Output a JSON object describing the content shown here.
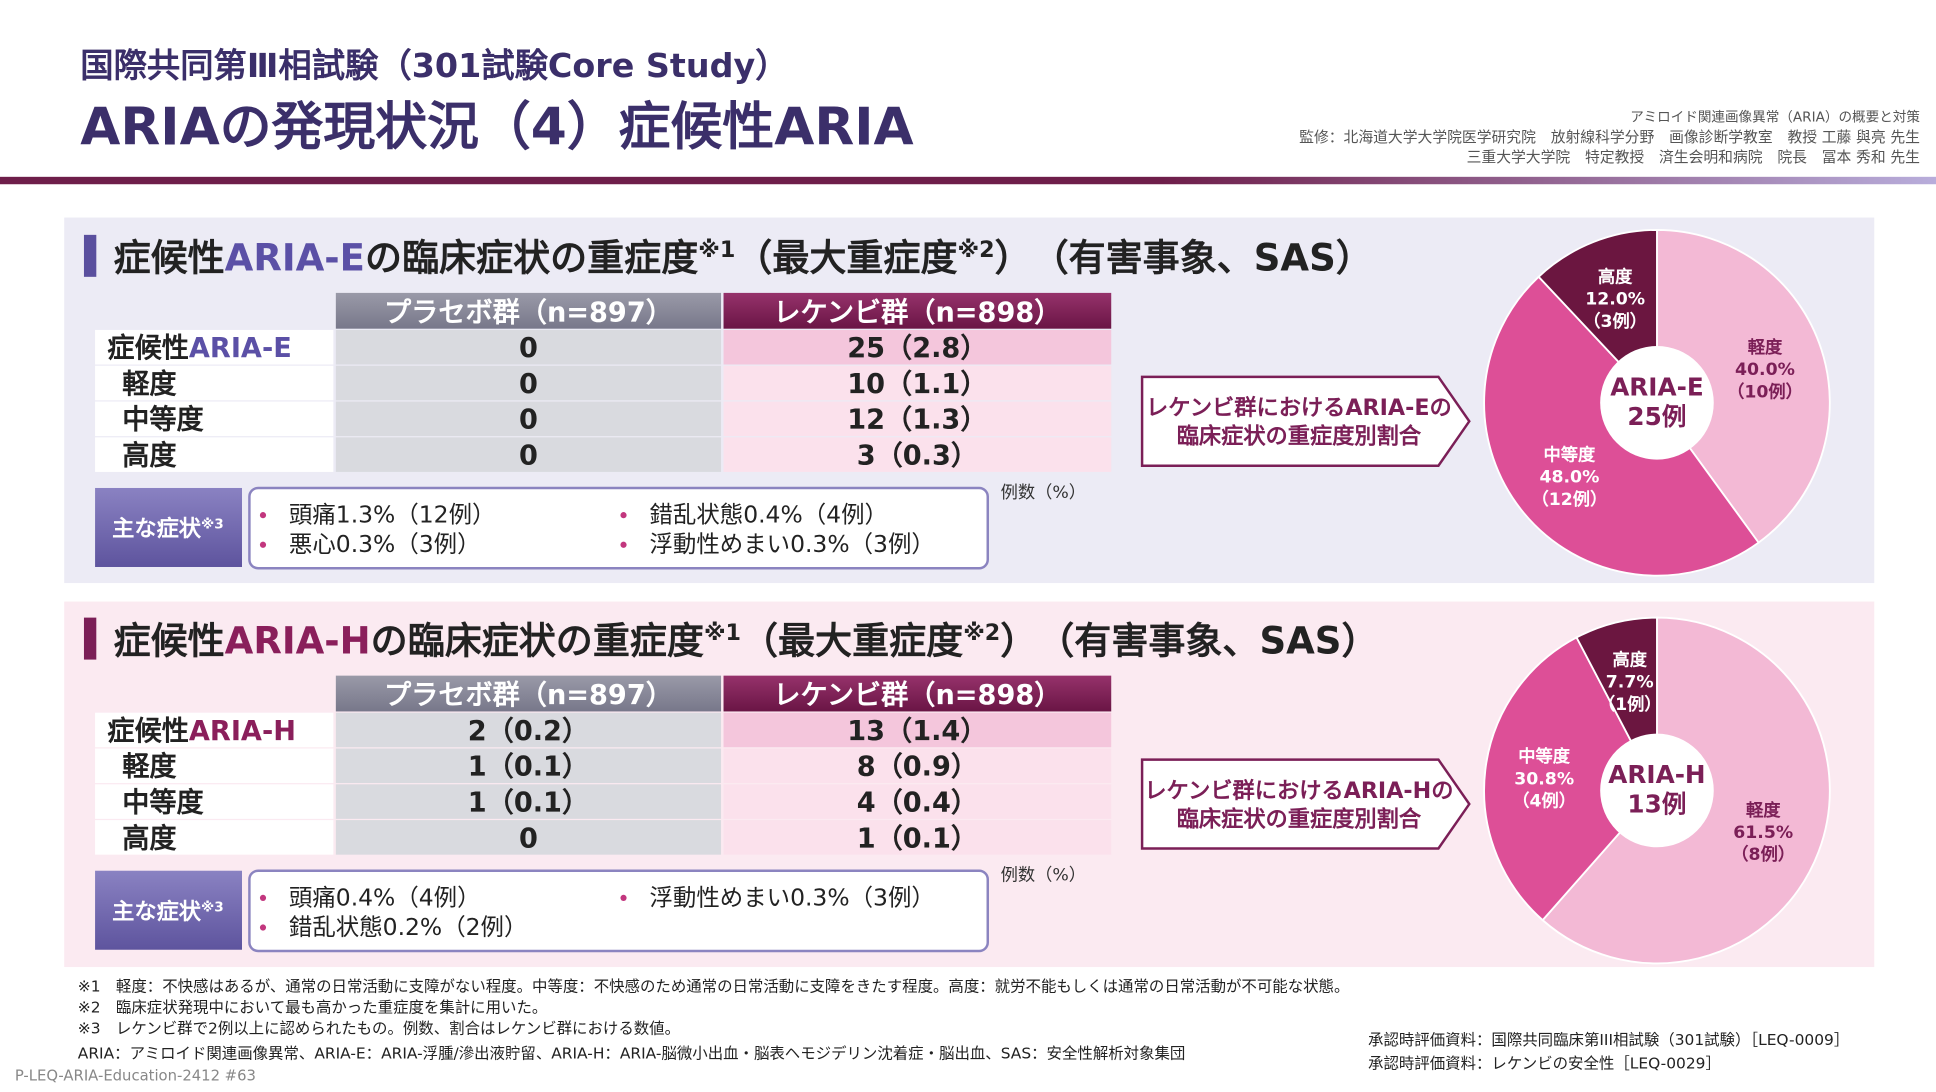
{
  "header": {
    "title": "国際共同第Ⅲ相試験（301試験Core Study）",
    "subtitle": "ARIAの発現状況（4）症候性ARIA",
    "source_lines": [
      "アミロイド関連画像異常（ARIA）の概要と対策",
      "監修：北海道大学大学院医学研究院　放射線科学分野　画像診断学教室　教授 工藤 與亮 先生",
      "三重大学大学院　特定教授　済生会明和病院　院長　冨本 秀和 先生"
    ]
  },
  "sections": [
    {
      "title": {
        "prefix": "症候性",
        "term": "ARIA-E",
        "text1": "の臨床症状の重症度",
        "note1": "※1",
        "text2": "（最大重症度",
        "note2": "※2",
        "text3": "）　（有害事象、SAS）"
      },
      "table": {
        "columns": [
          "プラセボ群（n=897）",
          "レケンビ群（n=898）"
        ],
        "rows": [
          {
            "label": [
              "症候性",
              "ARIA-E"
            ],
            "cells": [
              "0",
              "25（2.8）"
            ]
          },
          {
            "label": "軽度",
            "cells": [
              "0",
              "10（1.1）"
            ]
          },
          {
            "label": "中等度",
            "cells": [
              "0",
              "12（1.3）"
            ]
          },
          {
            "label": "高度",
            "cells": [
              "0",
              "3（0.3）"
            ]
          }
        ]
      },
      "unit_note": "例数（%）",
      "symptoms_label": [
        "主な症状",
        "※3"
      ],
      "symptom_columns": [
        [
          "頭痛1.3%（12例）",
          "悪心0.3%（3例）"
        ],
        [
          "錯乱状態0.4%（4例）",
          "浮動性めまい0.3%（3例）"
        ]
      ],
      "callout": [
        "レケンビ群におけるARIA-Eの",
        "臨床症状の重症度別割合"
      ],
      "pie": {
        "type": "pie",
        "center_label": [
          "ARIA-E",
          "25例"
        ],
        "categories": [
          "軽度",
          "中等度",
          "高度"
        ],
        "values": [
          40.0,
          48.0,
          12.0
        ],
        "value_labels": [
          "40.0%",
          "48.0%",
          "12.0%"
        ],
        "counts": [
          "（10例）",
          "（12例）",
          "（3例）"
        ],
        "colors": [
          "#f3b9d5",
          "#dd4f97",
          "#6b1640"
        ]
      }
    },
    {
      "title": {
        "prefix": "症候性",
        "term": "ARIA-H",
        "text1": "の臨床症状の重症度",
        "note1": "※1",
        "text2": "（最大重症度",
        "note2": "※2",
        "text3": "）　（有害事象、SAS）"
      },
      "table": {
        "columns": [
          "プラセボ群（n=897）",
          "レケンビ群（n=898）"
        ],
        "rows": [
          {
            "label": [
              "症候性",
              "ARIA-H"
            ],
            "cells": [
              "2（0.2）",
              "13（1.4）"
            ]
          },
          {
            "label": "軽度",
            "cells": [
              "1（0.1）",
              "8（0.9）"
            ]
          },
          {
            "label": "中等度",
            "cells": [
              "1（0.1）",
              "4（0.4）"
            ]
          },
          {
            "label": "高度",
            "cells": [
              "0",
              "1（0.1）"
            ]
          }
        ]
      },
      "unit_note": "例数（%）",
      "symptoms_label": [
        "主な症状",
        "※3"
      ],
      "symptom_columns": [
        [
          "頭痛0.4%（4例）",
          "錯乱状態0.2%（2例）"
        ],
        [
          "浮動性めまい0.3%（3例）"
        ]
      ],
      "callout": [
        "レケンビ群におけるARIA-Hの",
        "臨床症状の重症度別割合"
      ],
      "pie": {
        "type": "pie",
        "center_label": [
          "ARIA-H",
          "13例"
        ],
        "categories": [
          "軽度",
          "中等度",
          "高度"
        ],
        "values": [
          61.5,
          30.8,
          7.7
        ],
        "value_labels": [
          "61.5%",
          "30.8%",
          "7.7%"
        ],
        "counts": [
          "（8例）",
          "（4例）",
          "（1例）"
        ],
        "colors": [
          "#f3b9d5",
          "#dd4f97",
          "#6b1640"
        ]
      }
    }
  ],
  "footnotes": [
    "※1　軽度：不快感はあるが、通常の日常活動に支障がない程度。中等度：不快感のため通常の日常活動に支障をきたす程度。高度：就労不能もしくは通常の日常活動が不可能な状態。",
    "※2　臨床症状発現中において最も高かった重症度を集計に用いた。",
    "※3　レケンビ群で2例以上に認められたもの。例数、割合はレケンビ群における数値。",
    "ARIA：アミロイド関連画像異常、ARIA-E：ARIA-浮腫/滲出液貯留、ARIA-H：ARIA-脳微小出血・脳表ヘモジデリン沈着症・脳出血、SAS：安全性解析対象集団"
  ],
  "references": [
    "承認時評価資料：国際共同臨床第III相試験（301試験）［LEQ-0009］",
    "承認時評価資料：レケンビの安全性［LEQ-0029］"
  ],
  "code": "P-LEQ-ARIA-Education-2412 #63"
}
